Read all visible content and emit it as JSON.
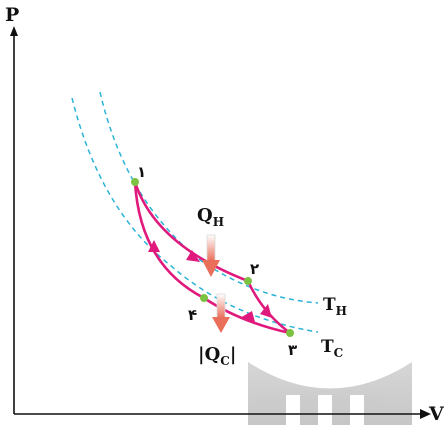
{
  "axes": {
    "y_label": "P",
    "x_label": "V"
  },
  "points": [
    {
      "id": "p1",
      "label": "۱"
    },
    {
      "id": "p2",
      "label": "۲"
    },
    {
      "id": "p3",
      "label": "۳"
    },
    {
      "id": "p4",
      "label": "۴"
    }
  ],
  "heat": {
    "qh_main": "Q",
    "qh_sub": "H",
    "qc_open": "|",
    "qc_main": "Q",
    "qc_sub": "C",
    "qc_close": "|"
  },
  "isotherms": {
    "hot_main": "T",
    "hot_sub": "H",
    "cold_main": "T",
    "cold_sub": "C"
  },
  "colors": {
    "cycle": "#e0197d",
    "isotherm": "#2bb3d8",
    "point": "#7cc242",
    "heat_arrow": "#ea6f5a",
    "axis": "#111111"
  }
}
